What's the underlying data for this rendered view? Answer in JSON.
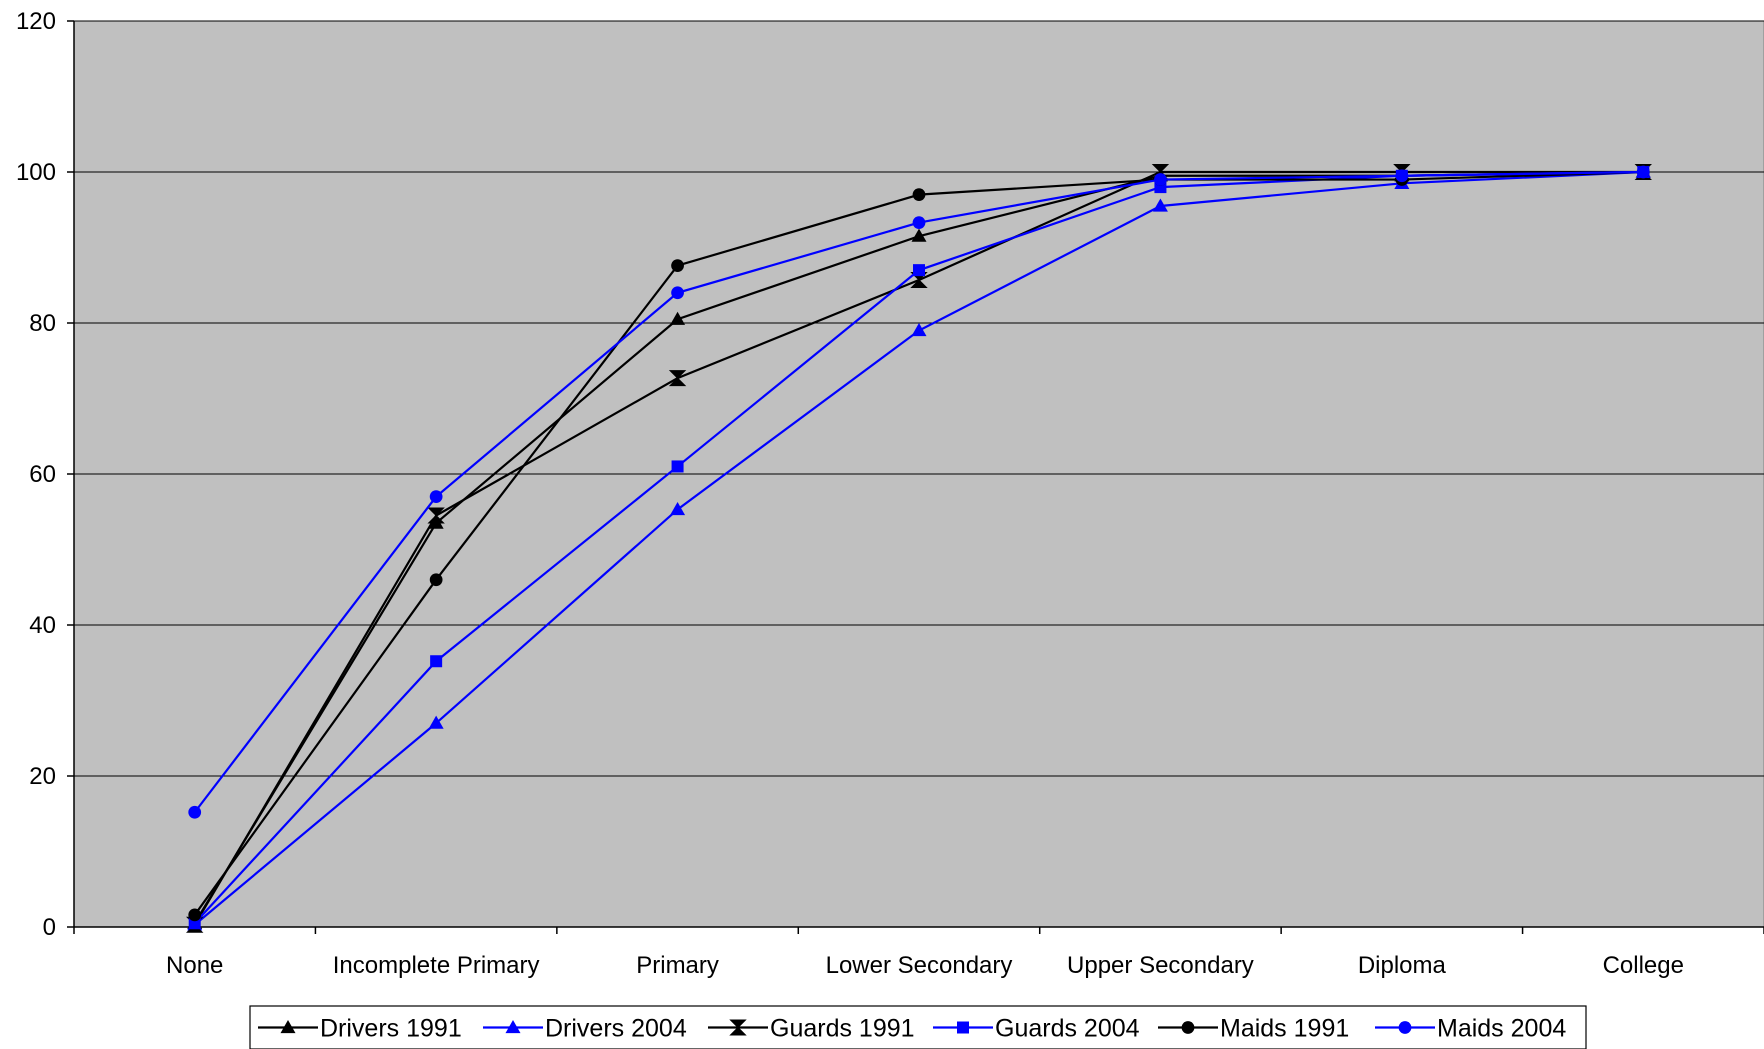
{
  "chart_data": {
    "type": "line",
    "title": "",
    "xlabel": "",
    "ylabel": "",
    "categories": [
      "None",
      "Incomplete Primary",
      "Primary",
      "Lower Secondary",
      "Upper Secondary",
      "Diploma",
      "College"
    ],
    "ylim": [
      0,
      120
    ],
    "yticks": [
      "0",
      "20",
      "40",
      "60",
      "80",
      "100",
      "120"
    ],
    "grid": "horizontal",
    "plot_background": "#C0C0C0",
    "legend_position": "bottom",
    "series": [
      {
        "name": "Drivers 1991",
        "color": "#000000",
        "marker": "triangle",
        "values": [
          0.5,
          53.5,
          80.5,
          91.5,
          99.5,
          99.5,
          100
        ]
      },
      {
        "name": "Drivers 2004",
        "color": "#0000FF",
        "marker": "triangle",
        "values": [
          0.3,
          27,
          55.3,
          79,
          95.5,
          98.5,
          100
        ]
      },
      {
        "name": "Guards 1991",
        "color": "#000000",
        "marker": "bowtie",
        "values": [
          0.3,
          54.5,
          72.7,
          85.7,
          100,
          100,
          100
        ]
      },
      {
        "name": "Guards 2004",
        "color": "#0000FF",
        "marker": "square",
        "values": [
          0.5,
          35.2,
          61,
          87,
          98,
          99.5,
          100
        ]
      },
      {
        "name": "Maids 1991",
        "color": "#000000",
        "marker": "circle",
        "values": [
          1.6,
          46,
          87.6,
          97,
          99,
          99,
          100
        ]
      },
      {
        "name": "Maids 2004",
        "color": "#0000FF",
        "marker": "circle",
        "values": [
          15.2,
          57,
          84,
          93.3,
          99,
          99.5,
          100
        ]
      }
    ]
  }
}
